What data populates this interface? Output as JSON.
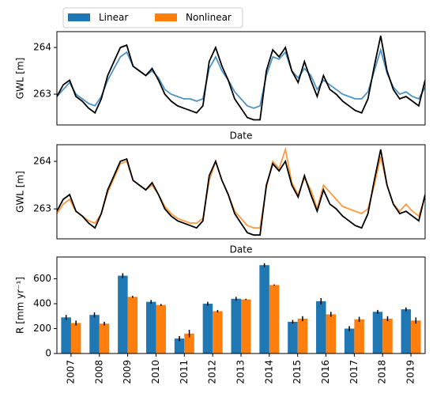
{
  "chart_data": [
    {
      "type": "line",
      "ylabel": "GWL [m]",
      "xlabel": "Date",
      "ylim": [
        262.34,
        264.34
      ],
      "yticks": [
        263,
        264
      ],
      "series": [
        {
          "color": "#3a87be",
          "values": [
            262.95,
            263.1,
            263.25,
            263.0,
            262.9,
            262.8,
            262.75,
            262.95,
            263.3,
            263.55,
            263.8,
            263.9,
            263.6,
            263.5,
            263.4,
            263.5,
            263.35,
            263.1,
            263.0,
            262.95,
            262.9,
            262.9,
            262.85,
            262.9,
            263.55,
            263.8,
            263.5,
            263.3,
            263.05,
            262.9,
            262.75,
            262.7,
            262.75,
            263.4,
            263.8,
            263.75,
            263.9,
            263.5,
            263.35,
            263.55,
            263.4,
            263.1,
            263.3,
            263.2,
            263.1,
            263.0,
            262.95,
            262.9,
            262.9,
            263.05,
            263.5,
            263.95,
            263.45,
            263.15,
            263.0,
            263.05,
            262.95,
            262.9,
            263.15
          ]
        },
        {
          "color": "#000000",
          "values": [
            262.95,
            263.2,
            263.3,
            262.95,
            262.85,
            262.7,
            262.6,
            262.9,
            263.4,
            263.7,
            264.0,
            264.05,
            263.6,
            263.5,
            263.4,
            263.55,
            263.3,
            263.0,
            262.85,
            262.75,
            262.7,
            262.65,
            262.6,
            262.75,
            263.7,
            264.0,
            263.6,
            263.3,
            262.9,
            262.7,
            262.5,
            262.45,
            262.45,
            263.5,
            263.95,
            263.8,
            264.0,
            263.5,
            263.25,
            263.7,
            263.3,
            262.95,
            263.4,
            263.1,
            263.0,
            262.85,
            262.75,
            262.65,
            262.6,
            262.9,
            263.6,
            264.25,
            263.5,
            263.1,
            262.9,
            262.95,
            262.85,
            262.75,
            263.3
          ]
        }
      ]
    },
    {
      "type": "line",
      "ylabel": "GWL [m]",
      "xlabel": "Date",
      "ylim": [
        262.37,
        264.35
      ],
      "yticks": [
        263,
        264
      ],
      "series": [
        {
          "color": "#ff8f2e",
          "values": [
            262.9,
            263.1,
            263.2,
            262.95,
            262.85,
            262.75,
            262.7,
            262.9,
            263.35,
            263.65,
            263.95,
            264.0,
            263.6,
            263.5,
            263.4,
            263.5,
            263.3,
            263.05,
            262.9,
            262.8,
            262.75,
            262.7,
            262.7,
            262.8,
            263.6,
            264.0,
            263.6,
            263.3,
            262.95,
            262.8,
            262.65,
            262.6,
            262.6,
            263.45,
            264.0,
            263.85,
            264.25,
            263.55,
            263.3,
            263.65,
            263.4,
            263.0,
            263.5,
            263.35,
            263.2,
            263.05,
            263.0,
            262.95,
            262.9,
            263.0,
            263.5,
            264.1,
            263.5,
            263.1,
            262.95,
            263.1,
            262.95,
            262.85,
            263.25
          ]
        },
        {
          "color": "#000000",
          "values": [
            262.95,
            263.2,
            263.3,
            262.95,
            262.85,
            262.7,
            262.6,
            262.9,
            263.4,
            263.7,
            264.0,
            264.05,
            263.6,
            263.5,
            263.4,
            263.55,
            263.3,
            263.0,
            262.85,
            262.75,
            262.7,
            262.65,
            262.6,
            262.75,
            263.7,
            264.0,
            263.6,
            263.3,
            262.9,
            262.7,
            262.5,
            262.45,
            262.45,
            263.5,
            263.95,
            263.8,
            264.0,
            263.5,
            263.25,
            263.7,
            263.3,
            262.95,
            263.4,
            263.1,
            263.0,
            262.85,
            262.75,
            262.65,
            262.6,
            262.9,
            263.6,
            264.25,
            263.5,
            263.1,
            262.9,
            262.95,
            262.85,
            262.75,
            263.3
          ]
        }
      ]
    },
    {
      "type": "bar",
      "ylabel": "R [mm yr⁻¹]",
      "ylim": [
        0,
        775
      ],
      "yticks": [
        0,
        200,
        400,
        600
      ],
      "categories": [
        "2007",
        "2008",
        "2009",
        "2010",
        "2011",
        "2012",
        "2013",
        "2014",
        "2015",
        "2016",
        "2017",
        "2018",
        "2019"
      ],
      "series": [
        {
          "name": "Linear",
          "color": "#1f77b4",
          "values": [
            290,
            310,
            625,
            415,
            120,
            400,
            440,
            710,
            255,
            420,
            200,
            335,
            355
          ],
          "errors": [
            20,
            20,
            20,
            15,
            20,
            15,
            15,
            15,
            15,
            25,
            20,
            15,
            15
          ]
        },
        {
          "name": "Nonlinear",
          "color": "#ff7f0e",
          "values": [
            245,
            240,
            455,
            390,
            160,
            340,
            435,
            550,
            280,
            315,
            275,
            280,
            265
          ],
          "errors": [
            20,
            15,
            8,
            8,
            30,
            10,
            5,
            5,
            20,
            20,
            20,
            20,
            25
          ]
        }
      ]
    }
  ]
}
